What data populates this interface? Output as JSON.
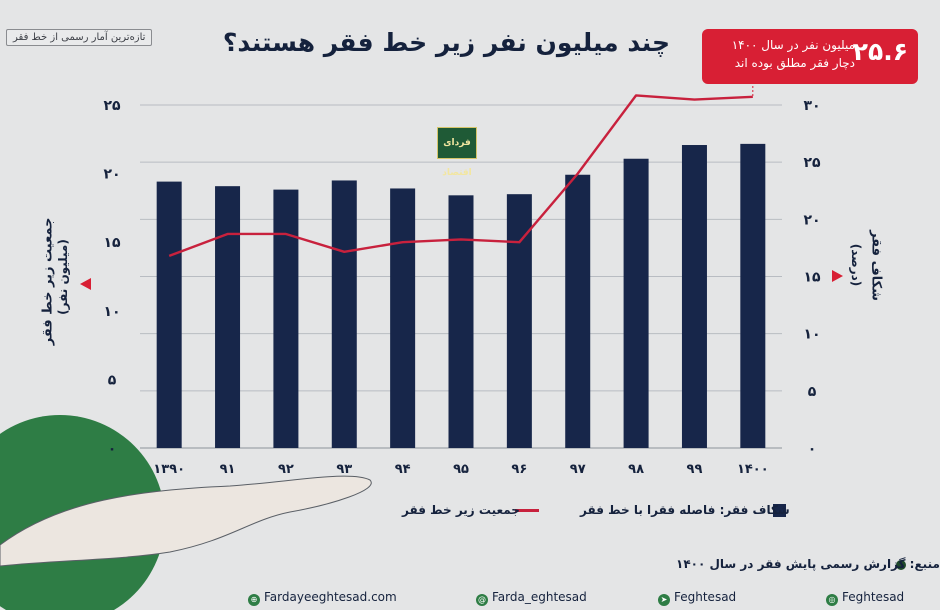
{
  "header": {
    "tag": "تازه‌ترین آمار رسمی از خط فقر",
    "title": "چند میلیون نفر زیر خط فقر هستند؟",
    "logo_text": "فردای اقتصاد"
  },
  "callout": {
    "value": "۲۵.۶",
    "text": "میلیون نفر در سال ۱۴۰۰ دچار فقر مطلق بوده اند"
  },
  "axes": {
    "left_title": "جمعیت زیر خط فقر",
    "left_unit": "(میلیون نفر)",
    "right_title": "شکاف فقر",
    "right_unit": "(درصد)",
    "left_ticks": [
      "۰",
      "۵",
      "۱۰",
      "۱۵",
      "۲۰",
      "۲۵"
    ],
    "right_ticks": [
      "۰",
      "۵",
      "۱۰",
      "۱۵",
      "۲۰",
      "۲۵",
      "۳۰"
    ]
  },
  "legend": {
    "bars": "شکاف فقر: فاصله فقرا با خط فقر",
    "line": "جمعیت زیر خط فقر"
  },
  "source": "منبع: گزارش رسمی پایش فقر در سال ۱۴۰۰",
  "footer": {
    "instagram": "Feghtesad",
    "telegram": "Feghtesad",
    "twitter": "Farda_eghtesad",
    "website": "Fardayeeghtesad.com"
  },
  "colors": {
    "bar": "#17264a",
    "line": "#c8213d",
    "accent": "#d81f34",
    "green": "#2e7d45"
  },
  "chart_data": {
    "type": "bar",
    "categories": [
      "۱۳۹۰",
      "۹۱",
      "۹۲",
      "۹۳",
      "۹۴",
      "۹۵",
      "۹۶",
      "۹۷",
      "۹۸",
      "۹۹",
      "۱۴۰۰"
    ],
    "series": [
      {
        "name": "شکاف فقر: فاصله فقرا با خط فقر",
        "type": "bar",
        "axis": "right",
        "values": [
          23.3,
          22.9,
          22.6,
          23.4,
          22.7,
          22.1,
          22.2,
          23.9,
          25.3,
          26.5,
          26.6
        ]
      },
      {
        "name": "جمعیت زیر خط فقر",
        "type": "line",
        "axis": "left",
        "values": [
          14.0,
          15.6,
          15.6,
          14.3,
          15.0,
          15.2,
          15.0,
          20.0,
          25.7,
          25.4,
          25.6
        ]
      }
    ],
    "ylim_left": [
      0,
      25
    ],
    "ylim_right": [
      0,
      30
    ],
    "grid": true
  }
}
